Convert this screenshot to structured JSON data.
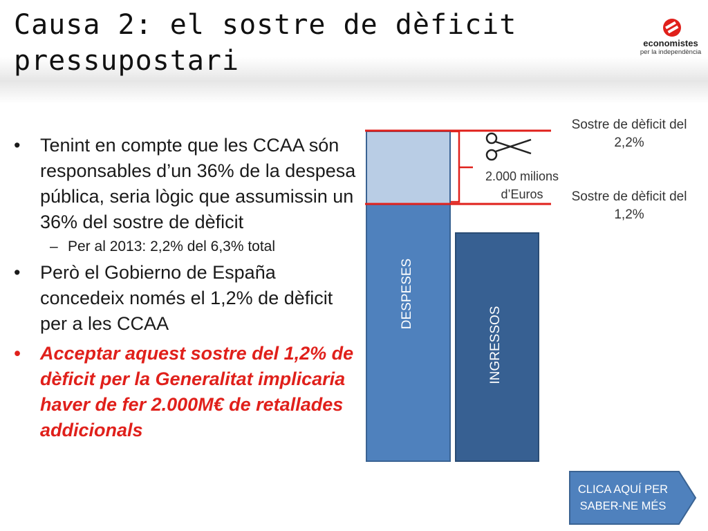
{
  "slide": {
    "title": "Causa 2: el sostre de dèficit pressupostari",
    "logo": {
      "line1": "economistes",
      "line2": "per la independència"
    },
    "bullets": [
      {
        "text": "Tenint en compte que les CCAA són responsables d’un 36% de la despesa pública, seria lògic que assumissin un 36% del sostre de dèficit",
        "highlight": false
      },
      {
        "sub": true,
        "text": "Per al 2013: 2,2% del 6,3% total"
      },
      {
        "text": "Però el Gobierno de España concedeix només el 1,2% de dèficit per a les CCAA",
        "highlight": false
      },
      {
        "text": "Acceptar aquest sostre del 1,2% de dèficit per la Generalitat implicaria haver de fer 2.000M€ de retallades addicionals",
        "highlight": true
      }
    ],
    "bullet_char": "•",
    "dash_char": "–"
  },
  "diagram": {
    "despeses_label": "DESPESES",
    "ingressos_label": "INGRESSOS",
    "upper_ceiling_label": "Sostre de dèficit del 2,2%",
    "lower_ceiling_label": "Sostre de dèficit del 1,2%",
    "gap_label": "2.000 milions d’Euros",
    "cut_icon": "scissors-icon",
    "colors": {
      "despeses": "#4f81bd",
      "despeses_cut": "#b9cde5",
      "ingressos": "#376092",
      "ceiling_line": "#e0201b",
      "cta": "#4f81bd",
      "highlight_text": "#e0201b"
    }
  },
  "cta": {
    "label": "CLICA AQUÍ PER SABER-NE MÉS"
  }
}
